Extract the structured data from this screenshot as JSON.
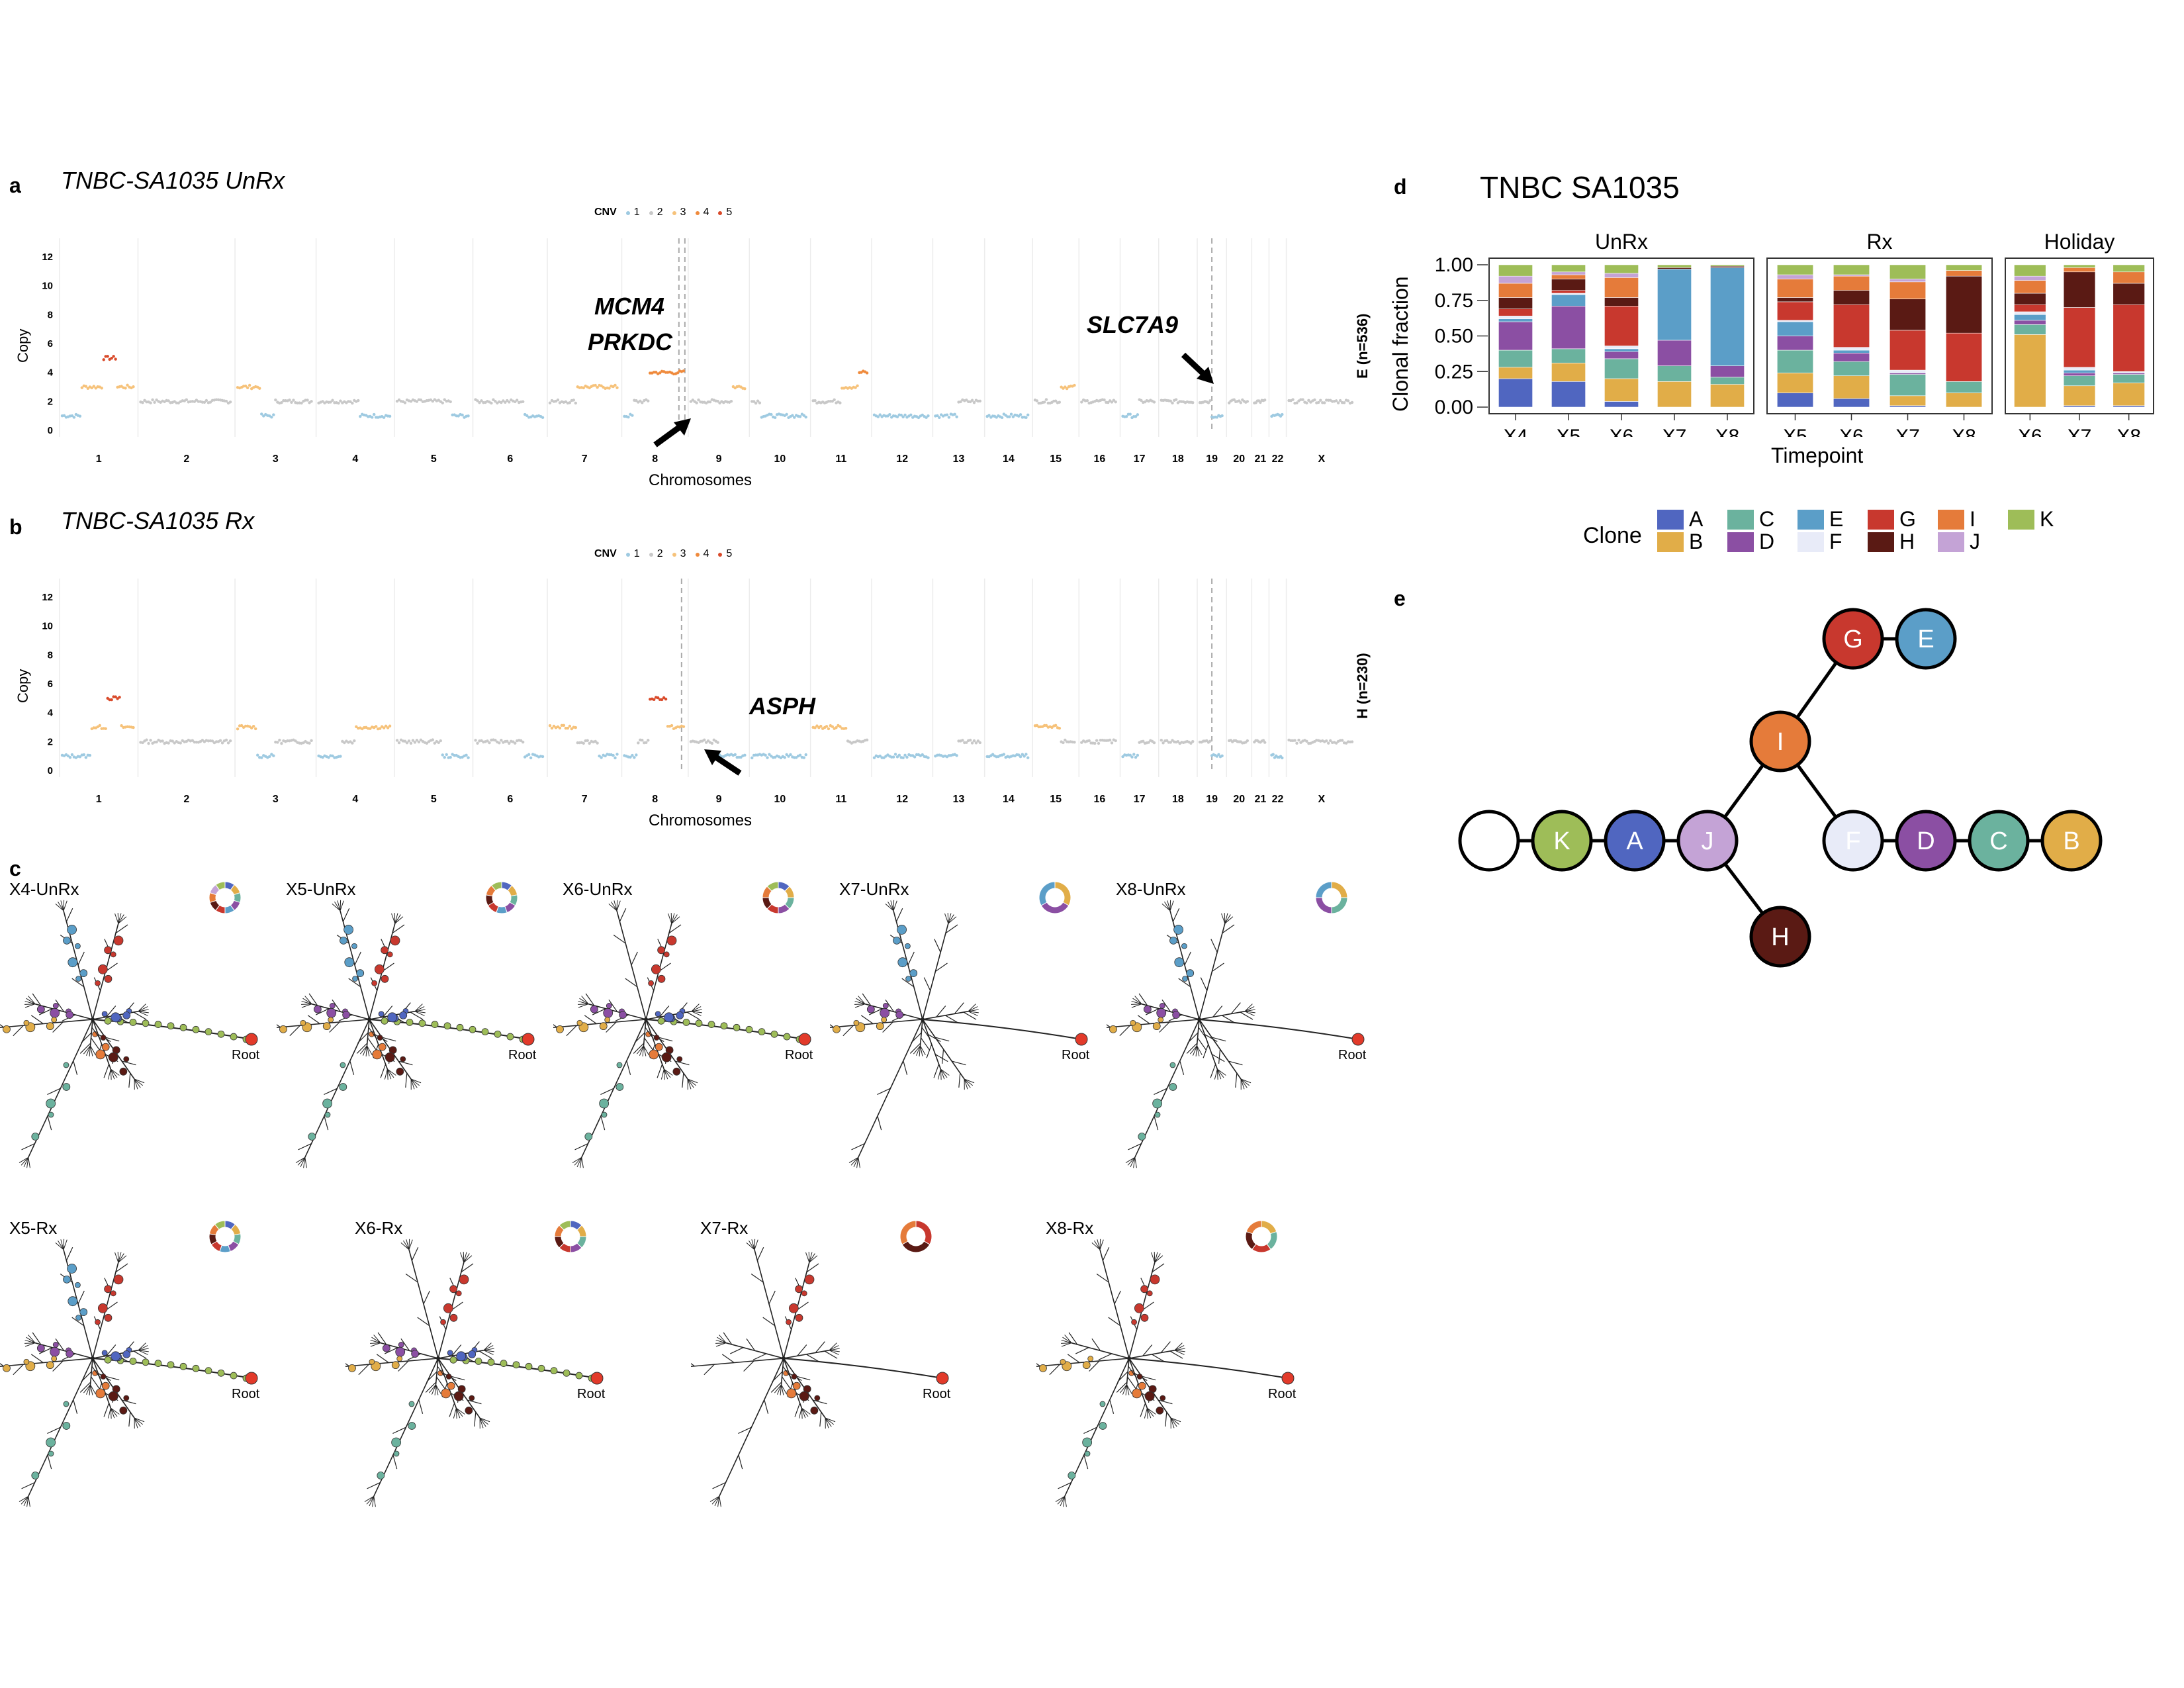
{
  "panels": {
    "a": {
      "letter": "a",
      "title": "TNBC-SA1035 UnRx",
      "ylabel": "Copy",
      "xlabel": "Chromosomes",
      "side_label": "E (n=536)",
      "genes": [
        "MCM4",
        "PRKDC",
        "SLC7A9"
      ]
    },
    "b": {
      "letter": "b",
      "title": "TNBC-SA1035 Rx",
      "ylabel": "Copy",
      "xlabel": "Chromosomes",
      "side_label": "H (n=230)",
      "genes": [
        "ASPH"
      ]
    },
    "c": {
      "letter": "c"
    },
    "d": {
      "letter": "d"
    },
    "e": {
      "letter": "e"
    }
  },
  "cnv_legend": {
    "title": "CNV",
    "items": [
      {
        "label": "1",
        "color": "#9ecae1"
      },
      {
        "label": "2",
        "color": "#c8c8c8"
      },
      {
        "label": "3",
        "color": "#f6c27a"
      },
      {
        "label": "4",
        "color": "#ef8a3c"
      },
      {
        "label": "5",
        "color": "#d94a2a"
      }
    ]
  },
  "copy_yticks": [
    "12",
    "10",
    "8",
    "6",
    "4",
    "2",
    "0"
  ],
  "chromosomes": [
    "1",
    "2",
    "3",
    "4",
    "5",
    "6",
    "7",
    "8",
    "9",
    "10",
    "11",
    "12",
    "13",
    "14",
    "15",
    "16",
    "17",
    "18",
    "19",
    "20",
    "21",
    "22",
    "X"
  ],
  "trees": {
    "row1": [
      "X4-UnRx",
      "X5-UnRx",
      "X6-UnRx",
      "X7-UnRx",
      "X8-UnRx"
    ],
    "row2": [
      "X5-Rx",
      "X6-Rx",
      "X7-Rx",
      "X8-Rx"
    ],
    "root_label": "Root"
  },
  "clone_colors": {
    "A": "#5066c0",
    "B": "#e1ad48",
    "C": "#6bb29e",
    "D": "#8b4fa3",
    "E": "#5b9ec8",
    "F": "#e8ebf8",
    "G": "#c8382e",
    "H": "#5a1a14",
    "I": "#e57b3a",
    "J": "#c4a3d6",
    "K": "#9ebd58"
  },
  "chart_data": {
    "type": "bar",
    "title": "TNBC SA1035",
    "ylabel": "Clonal fraction",
    "xlabel": "Timepoint",
    "ylim": [
      0,
      1
    ],
    "yticks": [
      "1.00",
      "0.75",
      "0.50",
      "0.25",
      "0.00"
    ],
    "legend_title": "Clone",
    "clones": [
      "A",
      "B",
      "C",
      "D",
      "E",
      "F",
      "G",
      "H",
      "I",
      "J",
      "K"
    ],
    "facets": [
      {
        "name": "UnRx",
        "bars": [
          {
            "x": "X4",
            "values": {
              "A": 0.2,
              "B": 0.08,
              "C": 0.12,
              "D": 0.2,
              "E": 0.02,
              "F": 0.02,
              "G": 0.05,
              "H": 0.08,
              "I": 0.1,
              "J": 0.05,
              "K": 0.08
            }
          },
          {
            "x": "X5",
            "values": {
              "A": 0.18,
              "B": 0.13,
              "C": 0.1,
              "D": 0.3,
              "E": 0.08,
              "F": 0.01,
              "G": 0.02,
              "H": 0.08,
              "I": 0.03,
              "J": 0.02,
              "K": 0.05
            }
          },
          {
            "x": "X6",
            "values": {
              "A": 0.04,
              "B": 0.16,
              "C": 0.14,
              "D": 0.05,
              "E": 0.02,
              "F": 0.02,
              "G": 0.28,
              "H": 0.06,
              "I": 0.14,
              "J": 0.03,
              "K": 0.06
            }
          },
          {
            "x": "X7",
            "values": {
              "A": 0.0,
              "B": 0.18,
              "C": 0.11,
              "D": 0.18,
              "E": 0.5,
              "F": 0.0,
              "G": 0.0,
              "H": 0.01,
              "I": 0.0,
              "J": 0.0,
              "K": 0.02
            }
          },
          {
            "x": "X8",
            "values": {
              "A": 0.0,
              "B": 0.16,
              "C": 0.05,
              "D": 0.08,
              "E": 0.69,
              "F": 0.0,
              "G": 0.0,
              "H": 0.01,
              "I": 0.0,
              "J": 0.0,
              "K": 0.01
            }
          }
        ]
      },
      {
        "name": "Rx",
        "bars": [
          {
            "x": "X5",
            "values": {
              "A": 0.1,
              "B": 0.14,
              "C": 0.16,
              "D": 0.1,
              "E": 0.1,
              "F": 0.01,
              "G": 0.13,
              "H": 0.03,
              "I": 0.13,
              "J": 0.03,
              "K": 0.07
            }
          },
          {
            "x": "X6",
            "values": {
              "A": 0.06,
              "B": 0.16,
              "C": 0.1,
              "D": 0.06,
              "E": 0.02,
              "F": 0.02,
              "G": 0.3,
              "H": 0.1,
              "I": 0.1,
              "J": 0.01,
              "K": 0.07
            }
          },
          {
            "x": "X7",
            "values": {
              "A": 0.01,
              "B": 0.07,
              "C": 0.15,
              "D": 0.01,
              "E": 0.0,
              "F": 0.02,
              "G": 0.28,
              "H": 0.22,
              "I": 0.12,
              "J": 0.02,
              "K": 0.1
            }
          },
          {
            "x": "X8",
            "values": {
              "A": 0.0,
              "B": 0.1,
              "C": 0.08,
              "D": 0.0,
              "E": 0.0,
              "F": 0.0,
              "G": 0.34,
              "H": 0.4,
              "I": 0.04,
              "J": 0.0,
              "K": 0.04
            }
          }
        ]
      },
      {
        "name": "Holiday",
        "bars": [
          {
            "x": "X6",
            "values": {
              "A": 0.0,
              "B": 0.51,
              "C": 0.07,
              "D": 0.03,
              "E": 0.04,
              "F": 0.02,
              "G": 0.05,
              "H": 0.08,
              "I": 0.09,
              "J": 0.03,
              "K": 0.08
            }
          },
          {
            "x": "X7",
            "values": {
              "A": 0.01,
              "B": 0.14,
              "C": 0.07,
              "D": 0.02,
              "E": 0.02,
              "F": 0.02,
              "G": 0.42,
              "H": 0.25,
              "I": 0.03,
              "J": 0.0,
              "K": 0.02
            }
          },
          {
            "x": "X8",
            "values": {
              "A": 0.01,
              "B": 0.16,
              "C": 0.06,
              "D": 0.01,
              "E": 0.0,
              "F": 0.01,
              "G": 0.47,
              "H": 0.15,
              "I": 0.08,
              "J": 0.0,
              "K": 0.05
            }
          }
        ]
      }
    ]
  },
  "clone_tree": {
    "nodes": [
      "",
      "K",
      "A",
      "J",
      "H",
      "I",
      "G",
      "E",
      "F",
      "D",
      "C",
      "B"
    ],
    "edges": [
      [
        "",
        "K"
      ],
      [
        "K",
        "A"
      ],
      [
        "A",
        "J"
      ],
      [
        "J",
        "H"
      ],
      [
        "J",
        "I"
      ],
      [
        "I",
        "G"
      ],
      [
        "G",
        "E"
      ],
      [
        "I",
        "F"
      ],
      [
        "F",
        "D"
      ],
      [
        "D",
        "C"
      ],
      [
        "C",
        "B"
      ]
    ]
  }
}
